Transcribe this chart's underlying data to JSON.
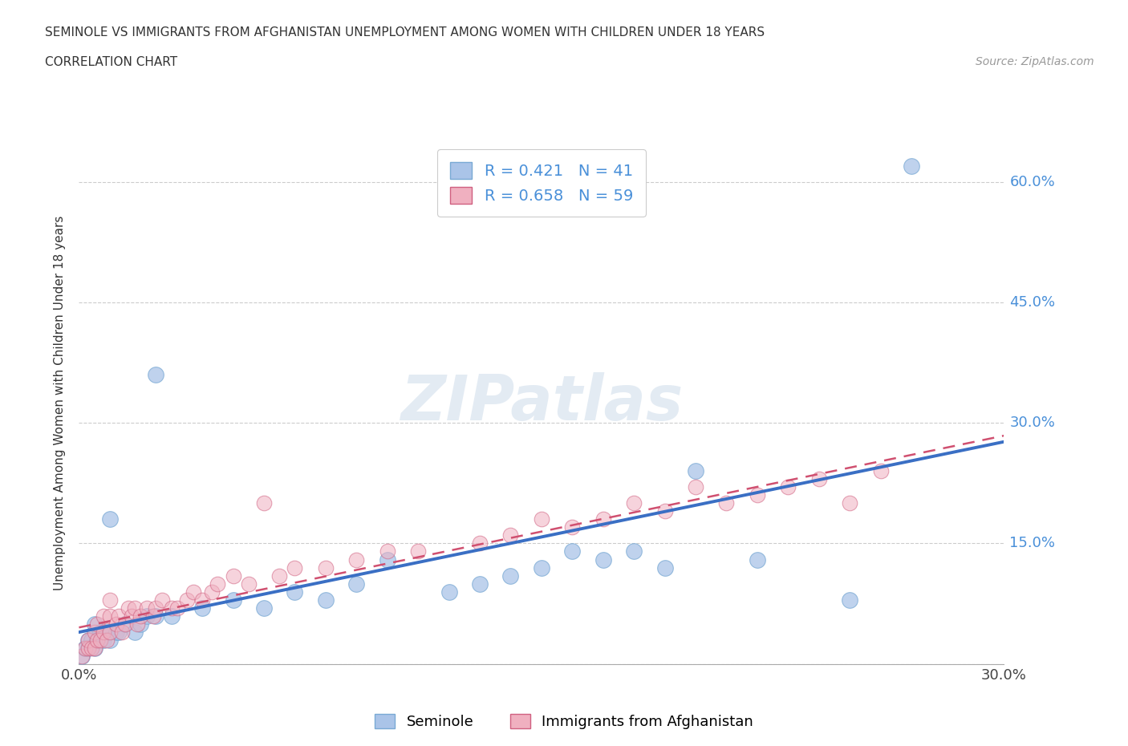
{
  "title_line1": "SEMINOLE VS IMMIGRANTS FROM AFGHANISTAN UNEMPLOYMENT AMONG WOMEN WITH CHILDREN UNDER 18 YEARS",
  "title_line2": "CORRELATION CHART",
  "source_text": "Source: ZipAtlas.com",
  "ylabel": "Unemployment Among Women with Children Under 18 years",
  "xlim": [
    0.0,
    0.3
  ],
  "ylim": [
    0.0,
    0.65
  ],
  "xtick_pos": [
    0.0,
    0.05,
    0.1,
    0.15,
    0.2,
    0.25,
    0.3
  ],
  "xtick_labels": [
    "0.0%",
    "",
    "",
    "",
    "",
    "",
    "30.0%"
  ],
  "ytick_pos": [
    0.0,
    0.15,
    0.3,
    0.45,
    0.6
  ],
  "ytick_labels": [
    "",
    "15.0%",
    "30.0%",
    "45.0%",
    "60.0%"
  ],
  "seminole_color": "#aac4e8",
  "seminole_edge_color": "#7aaad4",
  "seminole_line_color": "#3a6fc4",
  "afghanistan_color": "#f0b0c0",
  "afghanistan_edge_color": "#d06080",
  "afghanistan_line_color": "#d05070",
  "seminole_R": 0.421,
  "seminole_N": 41,
  "afghanistan_R": 0.658,
  "afghanistan_N": 59,
  "legend_label1": "Seminole",
  "legend_label2": "Immigrants from Afghanistan",
  "watermark": "ZIPatlas",
  "seminole_x": [
    0.001,
    0.002,
    0.003,
    0.003,
    0.004,
    0.005,
    0.005,
    0.006,
    0.007,
    0.008,
    0.009,
    0.01,
    0.01,
    0.012,
    0.013,
    0.015,
    0.018,
    0.02,
    0.022,
    0.025,
    0.025,
    0.03,
    0.04,
    0.05,
    0.06,
    0.07,
    0.08,
    0.09,
    0.1,
    0.12,
    0.13,
    0.14,
    0.15,
    0.16,
    0.17,
    0.18,
    0.19,
    0.2,
    0.22,
    0.25,
    0.27
  ],
  "seminole_y": [
    0.01,
    0.02,
    0.02,
    0.03,
    0.03,
    0.02,
    0.05,
    0.03,
    0.04,
    0.03,
    0.04,
    0.03,
    0.18,
    0.04,
    0.04,
    0.05,
    0.04,
    0.05,
    0.06,
    0.06,
    0.36,
    0.06,
    0.07,
    0.08,
    0.07,
    0.09,
    0.08,
    0.1,
    0.13,
    0.09,
    0.1,
    0.11,
    0.12,
    0.14,
    0.13,
    0.14,
    0.12,
    0.24,
    0.13,
    0.08,
    0.62
  ],
  "afghanistan_x": [
    0.001,
    0.002,
    0.003,
    0.003,
    0.004,
    0.005,
    0.005,
    0.006,
    0.006,
    0.007,
    0.008,
    0.008,
    0.009,
    0.01,
    0.01,
    0.01,
    0.012,
    0.013,
    0.014,
    0.015,
    0.016,
    0.017,
    0.018,
    0.019,
    0.02,
    0.022,
    0.024,
    0.025,
    0.027,
    0.03,
    0.032,
    0.035,
    0.037,
    0.04,
    0.043,
    0.045,
    0.05,
    0.055,
    0.06,
    0.065,
    0.07,
    0.08,
    0.09,
    0.1,
    0.11,
    0.13,
    0.14,
    0.15,
    0.16,
    0.17,
    0.18,
    0.19,
    0.2,
    0.21,
    0.22,
    0.23,
    0.24,
    0.25,
    0.26
  ],
  "afghanistan_y": [
    0.01,
    0.02,
    0.02,
    0.03,
    0.02,
    0.02,
    0.04,
    0.03,
    0.05,
    0.03,
    0.04,
    0.06,
    0.03,
    0.04,
    0.06,
    0.08,
    0.05,
    0.06,
    0.04,
    0.05,
    0.07,
    0.06,
    0.07,
    0.05,
    0.06,
    0.07,
    0.06,
    0.07,
    0.08,
    0.07,
    0.07,
    0.08,
    0.09,
    0.08,
    0.09,
    0.1,
    0.11,
    0.1,
    0.2,
    0.11,
    0.12,
    0.12,
    0.13,
    0.14,
    0.14,
    0.15,
    0.16,
    0.18,
    0.17,
    0.18,
    0.2,
    0.19,
    0.22,
    0.2,
    0.21,
    0.22,
    0.23,
    0.2,
    0.24
  ]
}
